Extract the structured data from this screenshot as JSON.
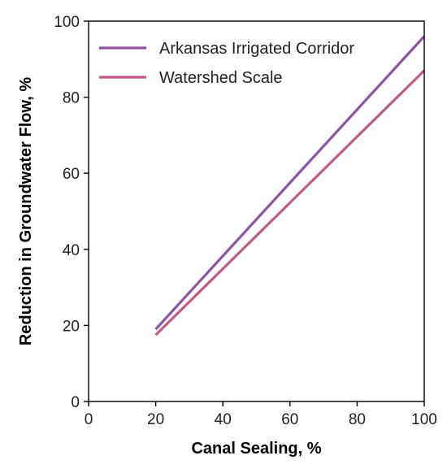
{
  "chart_data": {
    "type": "line",
    "title": "",
    "xlabel": "Canal Sealing, %",
    "ylabel": "Reduction in Groundwater Flow, %",
    "xlim": [
      0,
      100
    ],
    "ylim": [
      0,
      100
    ],
    "xticks": [
      "0",
      "20",
      "40",
      "60",
      "80",
      "100"
    ],
    "yticks": [
      "0",
      "20",
      "40",
      "60",
      "80",
      "100"
    ],
    "grid": false,
    "legend_position": "top-left",
    "series": [
      {
        "name": "Arkansas Irrigated Corridor",
        "color": "#8b55a4",
        "x": [
          20,
          100
        ],
        "y": [
          19,
          96
        ]
      },
      {
        "name": "Watershed Scale",
        "color": "#c05a86",
        "x": [
          20,
          100
        ],
        "y": [
          17.5,
          87
        ]
      }
    ]
  }
}
